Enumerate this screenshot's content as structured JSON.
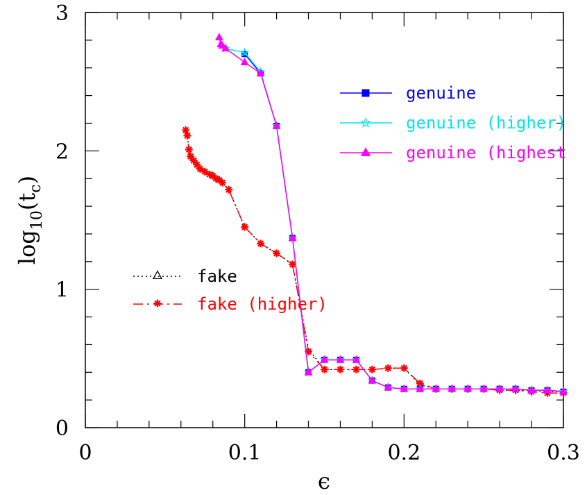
{
  "chart_data": {
    "type": "line",
    "title": "",
    "xlabel": "ϵ",
    "ylabel_main": "log",
    "ylabel_sub": "10",
    "ylabel_arg": "(t",
    "ylabel_arg_sub": "c",
    "ylabel_close": ")",
    "xlim": [
      0,
      0.3
    ],
    "ylim": [
      0,
      3
    ],
    "x_ticks": [
      0,
      0.1,
      0.2,
      0.3
    ],
    "x_tick_labels": [
      "0",
      "0.1",
      "0.2",
      "0.3"
    ],
    "y_ticks": [
      0,
      1,
      2,
      3
    ],
    "y_tick_labels": [
      "0",
      "1",
      "2",
      "3"
    ],
    "series": [
      {
        "name": "genuine",
        "color": "#0000ff",
        "dash": "none",
        "marker": "square",
        "legend_group": "top",
        "x": [
          0.1,
          0.11,
          0.12,
          0.13,
          0.14,
          0.15,
          0.16,
          0.17,
          0.18,
          0.19,
          0.2,
          0.21,
          0.22,
          0.23,
          0.24,
          0.25,
          0.26,
          0.27,
          0.28,
          0.29,
          0.3
        ],
        "y": [
          2.7,
          2.56,
          2.18,
          1.37,
          0.4,
          0.49,
          0.49,
          0.49,
          0.34,
          0.29,
          0.28,
          0.28,
          0.28,
          0.28,
          0.28,
          0.28,
          0.28,
          0.28,
          0.27,
          0.27,
          0.26
        ]
      },
      {
        "name": "genuine (higher)",
        "color": "#00e5ee",
        "dash": "none",
        "marker": "star",
        "legend_group": "top",
        "x": [
          0.088,
          0.1,
          0.11,
          0.12,
          0.13,
          0.14,
          0.15,
          0.16,
          0.17,
          0.18,
          0.19,
          0.2,
          0.21,
          0.22,
          0.23,
          0.24,
          0.25,
          0.26,
          0.27,
          0.28,
          0.29,
          0.3
        ],
        "y": [
          2.74,
          2.71,
          2.57,
          2.18,
          1.37,
          0.4,
          0.49,
          0.49,
          0.49,
          0.34,
          0.29,
          0.28,
          0.28,
          0.28,
          0.28,
          0.28,
          0.28,
          0.28,
          0.28,
          0.27,
          0.27,
          0.26
        ]
      },
      {
        "name": "genuine (highest",
        "color": "#ff00ff",
        "dash": "none",
        "marker": "triangle",
        "legend_group": "top",
        "x": [
          0.084,
          0.085,
          0.086,
          0.088,
          0.1,
          0.11,
          0.12,
          0.13,
          0.14,
          0.15,
          0.16,
          0.17,
          0.18,
          0.19,
          0.2,
          0.21,
          0.22,
          0.23,
          0.24,
          0.25,
          0.26,
          0.27,
          0.28,
          0.29,
          0.3
        ],
        "y": [
          2.82,
          2.77,
          2.76,
          2.74,
          2.64,
          2.56,
          2.18,
          1.37,
          0.4,
          0.49,
          0.49,
          0.49,
          0.34,
          0.29,
          0.28,
          0.28,
          0.28,
          0.28,
          0.28,
          0.28,
          0.28,
          0.28,
          0.27,
          0.27,
          0.26
        ]
      },
      {
        "name": "fake",
        "color": "#000000",
        "dash": "2,4",
        "marker": "open-triangle",
        "legend_group": "bottom",
        "x": [
          0.064,
          0.065,
          0.066,
          0.068,
          0.07,
          0.072,
          0.075,
          0.078,
          0.08,
          0.082,
          0.084,
          0.086,
          0.09,
          0.1,
          0.11,
          0.12,
          0.13,
          0.14,
          0.15,
          0.16,
          0.17,
          0.18,
          0.19,
          0.2,
          0.21,
          0.22,
          0.23,
          0.24,
          0.25,
          0.26,
          0.27,
          0.28,
          0.29,
          0.3
        ],
        "y": [
          2.13,
          2.0,
          1.95,
          1.92,
          1.89,
          1.87,
          1.85,
          1.83,
          1.82,
          1.8,
          1.79,
          1.77,
          1.72,
          1.45,
          1.33,
          1.26,
          1.18,
          0.57,
          0.42,
          0.42,
          0.42,
          0.42,
          0.43,
          0.43,
          0.31,
          0.28,
          0.28,
          0.28,
          0.28,
          0.27,
          0.27,
          0.27,
          0.26,
          0.26
        ]
      },
      {
        "name": "fake (higher)",
        "color": "#ff0000",
        "dash": "14,6,3,6",
        "marker": "asterisk",
        "legend_group": "bottom",
        "x": [
          0.063,
          0.064,
          0.065,
          0.066,
          0.068,
          0.07,
          0.072,
          0.075,
          0.078,
          0.08,
          0.082,
          0.084,
          0.086,
          0.09,
          0.1,
          0.11,
          0.12,
          0.13,
          0.14,
          0.15,
          0.16,
          0.17,
          0.18,
          0.19,
          0.2,
          0.21,
          0.22,
          0.23,
          0.24,
          0.25,
          0.26,
          0.27,
          0.28,
          0.29,
          0.3
        ],
        "y": [
          2.15,
          2.11,
          2.01,
          1.96,
          1.93,
          1.9,
          1.87,
          1.85,
          1.83,
          1.82,
          1.8,
          1.79,
          1.77,
          1.72,
          1.45,
          1.33,
          1.26,
          1.18,
          0.55,
          0.42,
          0.42,
          0.42,
          0.42,
          0.43,
          0.43,
          0.32,
          0.28,
          0.28,
          0.28,
          0.28,
          0.27,
          0.27,
          0.26,
          0.25,
          0.25
        ]
      }
    ]
  }
}
